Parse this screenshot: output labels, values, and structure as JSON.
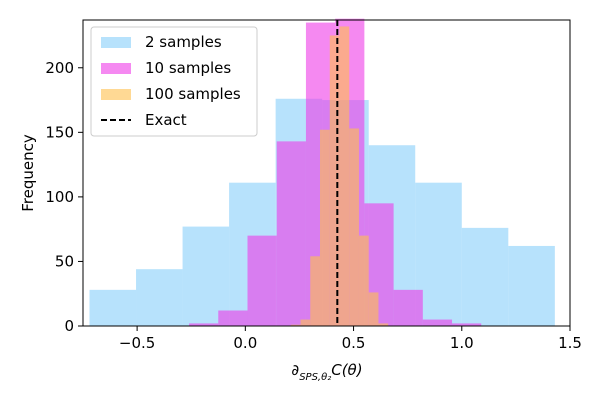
{
  "chart_data": {
    "type": "histogram",
    "xlabel": "∂SPS,θ₂C(θ)",
    "xlabel_parts": {
      "main": "∂",
      "sub": "SPS,θ₂",
      "rest": "C(θ)"
    },
    "ylabel": "Frequency",
    "xlim": [
      -0.75,
      1.5
    ],
    "ylim": [
      0,
      237
    ],
    "x_ticks": [
      -0.5,
      0.0,
      0.5,
      1.0,
      1.5
    ],
    "x_tick_labels": [
      "−0.5",
      "0.0",
      "0.5",
      "1.0",
      "1.5"
    ],
    "y_ticks": [
      0,
      50,
      100,
      150,
      200
    ],
    "y_tick_labels": [
      "0",
      "50",
      "100",
      "150",
      "200"
    ],
    "grid": false,
    "legend_position": "top-left",
    "series": [
      {
        "name": "2 samples",
        "color": "#87CEFA",
        "opacity": 0.6,
        "bins": [
          {
            "x0": -0.72,
            "x1": -0.505,
            "count": 28
          },
          {
            "x0": -0.505,
            "x1": -0.29,
            "count": 44
          },
          {
            "x0": -0.29,
            "x1": -0.075,
            "count": 77
          },
          {
            "x0": -0.075,
            "x1": 0.14,
            "count": 111
          },
          {
            "x0": 0.14,
            "x1": 0.355,
            "count": 176
          },
          {
            "x0": 0.355,
            "x1": 0.57,
            "count": 175
          },
          {
            "x0": 0.57,
            "x1": 0.785,
            "count": 140
          },
          {
            "x0": 0.785,
            "x1": 1.0,
            "count": 111
          },
          {
            "x0": 1.0,
            "x1": 1.215,
            "count": 76
          },
          {
            "x0": 1.215,
            "x1": 1.43,
            "count": 62
          }
        ]
      },
      {
        "name": "10 samples",
        "color": "#EE3BE8",
        "opacity": 0.6,
        "bins": [
          {
            "x0": -0.26,
            "x1": -0.125,
            "count": 2
          },
          {
            "x0": -0.125,
            "x1": 0.01,
            "count": 12
          },
          {
            "x0": 0.01,
            "x1": 0.145,
            "count": 70
          },
          {
            "x0": 0.145,
            "x1": 0.28,
            "count": 143
          },
          {
            "x0": 0.28,
            "x1": 0.415,
            "count": 235
          },
          {
            "x0": 0.415,
            "x1": 0.55,
            "count": 238
          },
          {
            "x0": 0.55,
            "x1": 0.685,
            "count": 95
          },
          {
            "x0": 0.685,
            "x1": 0.82,
            "count": 28
          },
          {
            "x0": 0.82,
            "x1": 0.955,
            "count": 5
          },
          {
            "x0": 0.955,
            "x1": 1.09,
            "count": 2
          }
        ]
      },
      {
        "name": "100 samples",
        "color": "#FFC04D",
        "opacity": 0.6,
        "bins": [
          {
            "x0": 0.21,
            "x1": 0.255,
            "count": 1
          },
          {
            "x0": 0.255,
            "x1": 0.3,
            "count": 5
          },
          {
            "x0": 0.3,
            "x1": 0.345,
            "count": 54
          },
          {
            "x0": 0.345,
            "x1": 0.39,
            "count": 152
          },
          {
            "x0": 0.39,
            "x1": 0.435,
            "count": 225
          },
          {
            "x0": 0.435,
            "x1": 0.48,
            "count": 232
          },
          {
            "x0": 0.48,
            "x1": 0.525,
            "count": 153
          },
          {
            "x0": 0.525,
            "x1": 0.57,
            "count": 70
          },
          {
            "x0": 0.57,
            "x1": 0.615,
            "count": 26
          },
          {
            "x0": 0.615,
            "x1": 0.66,
            "count": 2
          }
        ]
      }
    ],
    "reference_line": {
      "name": "Exact",
      "x": 0.425,
      "color": "#000000",
      "style": "dashed"
    }
  }
}
